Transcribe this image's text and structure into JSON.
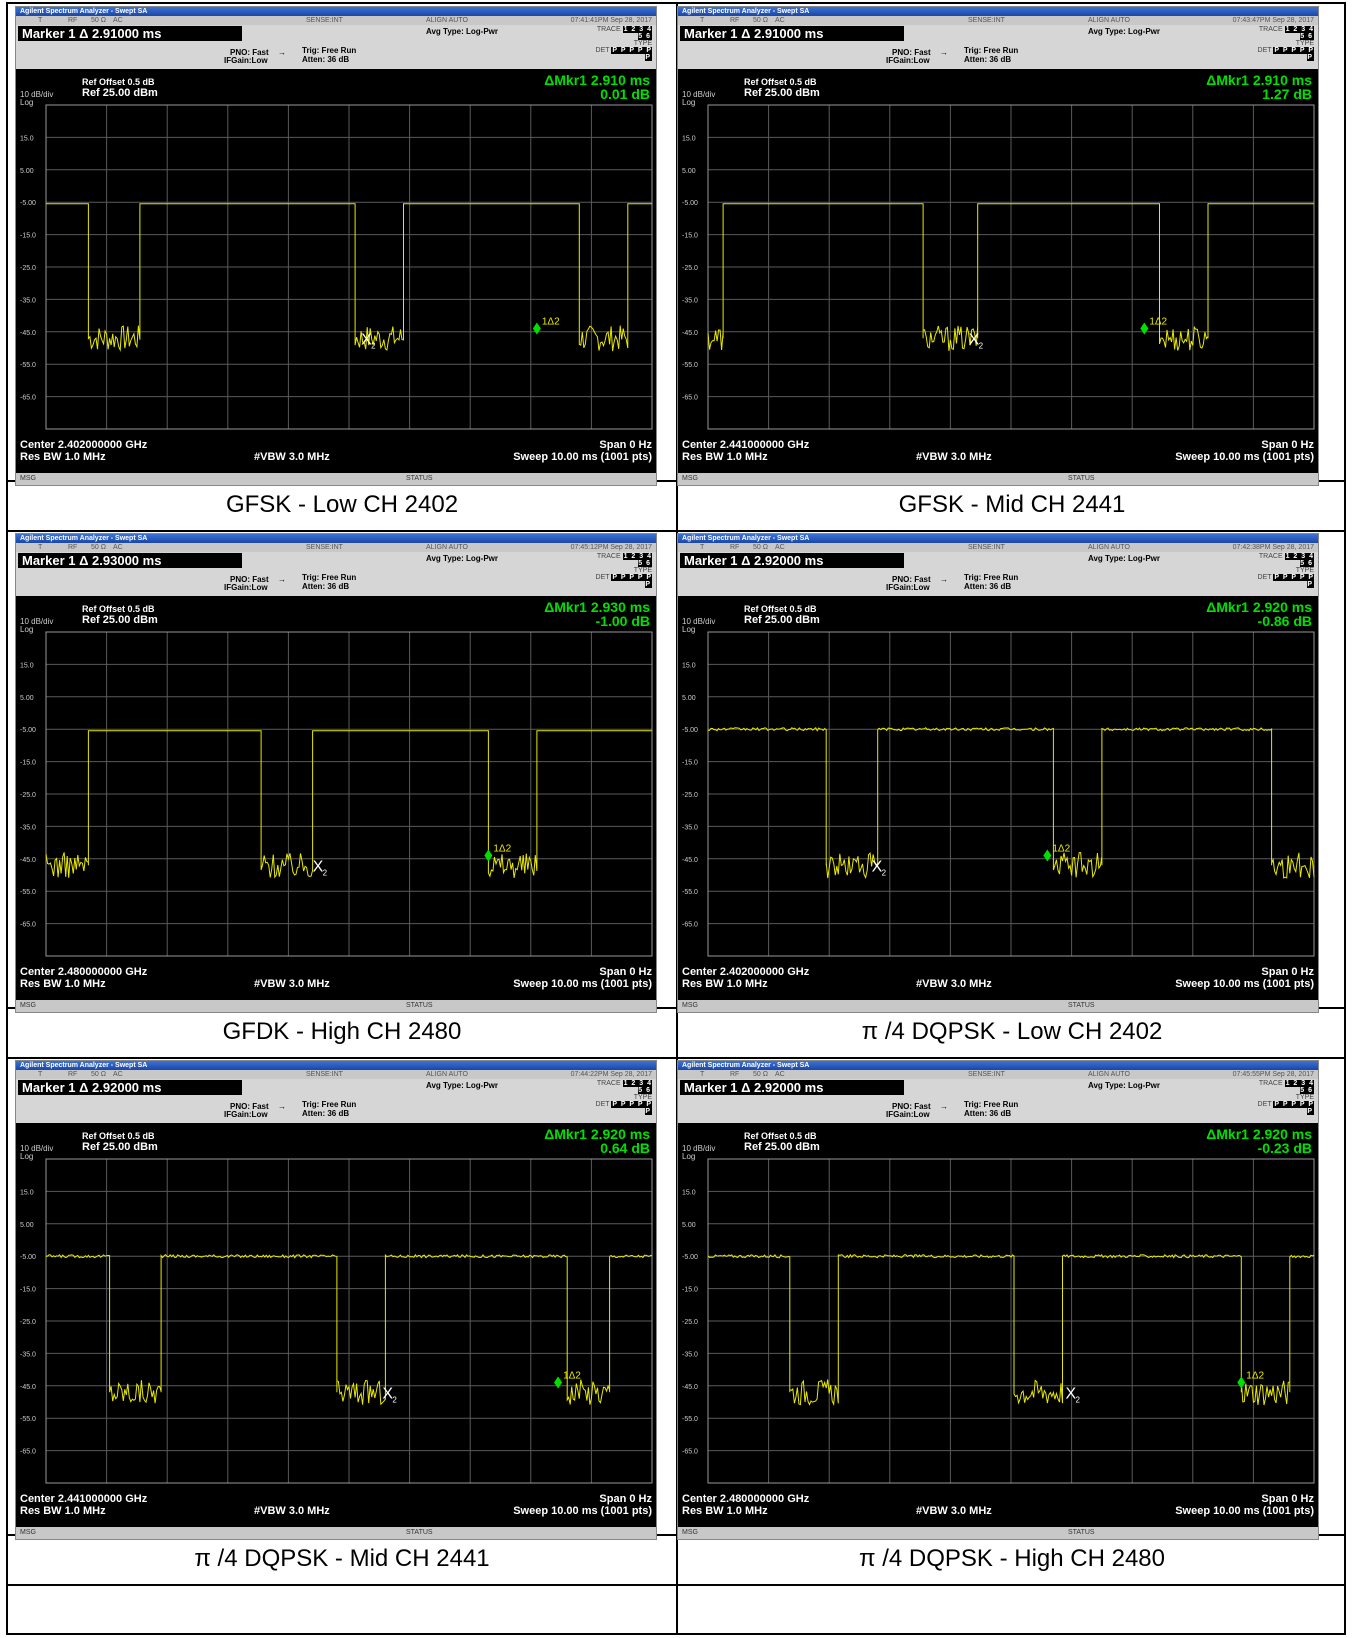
{
  "panels": [
    {
      "caption": "GFSK - Low CH 2402",
      "window_title": "Agilent Spectrum Analyzer - Swept SA",
      "timestamp": "07:41:41PM Sep 28, 2017",
      "marker_label": "Marker 1 Δ 2.91000 ms",
      "delta_mkr": "ΔMkr1 2.910 ms",
      "delta_db": "0.01 dB",
      "center": "Center 2.402000000 GHz",
      "chart_data": {
        "type": "line",
        "x_unit": "ms",
        "xlim": [
          0,
          10
        ],
        "ylim": [
          -75,
          25
        ],
        "segments": [
          [
            0,
            -5.5
          ],
          [
            0.7,
            -5.5
          ],
          [
            0.7,
            -47
          ],
          [
            1.55,
            -47
          ],
          [
            1.55,
            -5.5
          ],
          [
            5.1,
            -5.5
          ],
          [
            5.1,
            -47
          ],
          [
            5.9,
            -47
          ],
          [
            5.9,
            -5.5
          ],
          [
            8.8,
            -5.5
          ],
          [
            8.8,
            -47
          ],
          [
            9.6,
            -47
          ],
          [
            9.6,
            -5.5
          ],
          [
            10,
            -5.5
          ]
        ],
        "noisy_levels": "low",
        "marker_x2": 5.2,
        "marker_1delta2": 8.1
      }
    },
    {
      "caption": "GFSK - Mid CH 2441",
      "window_title": "Agilent Spectrum Analyzer - Swept SA",
      "timestamp": "07:43:47PM Sep 28, 2017",
      "marker_label": "Marker 1 Δ 2.91000 ms",
      "delta_mkr": "ΔMkr1 2.910 ms",
      "delta_db": "1.27 dB",
      "center": "Center 2.441000000 GHz",
      "chart_data": {
        "type": "line",
        "x_unit": "ms",
        "xlim": [
          0,
          10
        ],
        "ylim": [
          -75,
          25
        ],
        "segments": [
          [
            0,
            -47
          ],
          [
            0.25,
            -47
          ],
          [
            0.25,
            -5.5
          ],
          [
            3.55,
            -5.5
          ],
          [
            3.55,
            -47
          ],
          [
            4.45,
            -47
          ],
          [
            4.45,
            -5.5
          ],
          [
            7.45,
            -5.5
          ],
          [
            7.45,
            -47
          ],
          [
            8.25,
            -47
          ],
          [
            8.25,
            -5.5
          ],
          [
            10,
            -5.5
          ]
        ],
        "noisy_levels": "low",
        "marker_x2": 4.3,
        "marker_1delta2": 7.2
      }
    },
    {
      "caption": "GFDK - High CH 2480",
      "window_title": "Agilent Spectrum Analyzer - Swept SA",
      "timestamp": "07:45:12PM Sep 28, 2017",
      "marker_label": "Marker 1 Δ 2.93000 ms",
      "delta_mkr": "ΔMkr1 2.930 ms",
      "delta_db": "-1.00 dB",
      "center": "Center 2.480000000 GHz",
      "chart_data": {
        "type": "line",
        "x_unit": "ms",
        "xlim": [
          0,
          10
        ],
        "ylim": [
          -75,
          25
        ],
        "segments": [
          [
            0,
            -47
          ],
          [
            0.7,
            -47
          ],
          [
            0.7,
            -5.5
          ],
          [
            3.55,
            -5.5
          ],
          [
            3.55,
            -47
          ],
          [
            4.4,
            -47
          ],
          [
            4.4,
            -5.5
          ],
          [
            7.3,
            -5.5
          ],
          [
            7.3,
            -47
          ],
          [
            8.1,
            -47
          ],
          [
            8.1,
            -5.5
          ],
          [
            10,
            -5.5
          ]
        ],
        "noisy_levels": "low",
        "marker_x2": 4.4,
        "marker_1delta2": 7.3
      }
    },
    {
      "caption": "π /4 DQPSK - Low CH 2402",
      "window_title": "Agilent Spectrum Analyzer - Swept SA",
      "timestamp": "07:42:38PM Sep 28, 2017",
      "marker_label": "Marker 1 Δ 2.92000 ms",
      "delta_mkr": "ΔMkr1 2.920 ms",
      "delta_db": "-0.86 dB",
      "center": "Center 2.402000000 GHz",
      "chart_data": {
        "type": "line",
        "x_unit": "ms",
        "xlim": [
          0,
          10
        ],
        "ylim": [
          -75,
          25
        ],
        "segments": [
          [
            0,
            -5
          ],
          [
            1.95,
            -5
          ],
          [
            1.95,
            -47
          ],
          [
            2.8,
            -47
          ],
          [
            2.8,
            -5
          ],
          [
            5.7,
            -5
          ],
          [
            5.7,
            -47
          ],
          [
            6.5,
            -47
          ],
          [
            6.5,
            -5
          ],
          [
            9.3,
            -5
          ],
          [
            9.3,
            -47
          ],
          [
            10,
            -47
          ]
        ],
        "noisy_levels": "high",
        "marker_x2": 2.7,
        "marker_1delta2": 5.6
      }
    },
    {
      "caption": "π /4 DQPSK - Mid CH 2441",
      "window_title": "Agilent Spectrum Analyzer - Swept SA",
      "timestamp": "07:44:22PM Sep 28, 2017",
      "marker_label": "Marker 1 Δ 2.92000 ms",
      "delta_mkr": "ΔMkr1 2.920 ms",
      "delta_db": "0.64 dB",
      "center": "Center 2.441000000 GHz",
      "chart_data": {
        "type": "line",
        "x_unit": "ms",
        "xlim": [
          0,
          10
        ],
        "ylim": [
          -75,
          25
        ],
        "segments": [
          [
            0,
            -5
          ],
          [
            1.05,
            -5
          ],
          [
            1.05,
            -47
          ],
          [
            1.9,
            -47
          ],
          [
            1.9,
            -5
          ],
          [
            4.8,
            -5
          ],
          [
            4.8,
            -47
          ],
          [
            5.6,
            -47
          ],
          [
            5.6,
            -5
          ],
          [
            8.6,
            -5
          ],
          [
            8.6,
            -47
          ],
          [
            9.3,
            -47
          ],
          [
            9.3,
            -5
          ],
          [
            10,
            -5
          ]
        ],
        "noisy_levels": "high",
        "marker_x2": 5.55,
        "marker_1delta2": 8.45
      }
    },
    {
      "caption": "π /4 DQPSK - High CH 2480",
      "window_title": "Agilent Spectrum Analyzer - Swept SA",
      "timestamp": "07:45:55PM Sep 28, 2017",
      "marker_label": "Marker 1 Δ 2.92000 ms",
      "delta_mkr": "ΔMkr1 2.920 ms",
      "delta_db": "-0.23 dB",
      "center": "Center 2.480000000 GHz",
      "chart_data": {
        "type": "line",
        "x_unit": "ms",
        "xlim": [
          0,
          10
        ],
        "ylim": [
          -75,
          25
        ],
        "segments": [
          [
            0,
            -5
          ],
          [
            1.35,
            -5
          ],
          [
            1.35,
            -47
          ],
          [
            2.15,
            -47
          ],
          [
            2.15,
            -5
          ],
          [
            5.05,
            -5
          ],
          [
            5.05,
            -47
          ],
          [
            5.85,
            -47
          ],
          [
            5.85,
            -5
          ],
          [
            8.8,
            -5
          ],
          [
            8.8,
            -47
          ],
          [
            9.6,
            -47
          ],
          [
            9.6,
            -5
          ],
          [
            10,
            -5
          ]
        ],
        "noisy_levels": "high",
        "marker_x2": 5.9,
        "marker_1delta2": 8.8
      }
    }
  ],
  "common": {
    "status_items": [
      "T",
      "RF",
      "50 Ω",
      "AC",
      "SENSE:INT",
      "ALIGN AUTO"
    ],
    "avg_type": "Avg Type: Log-Pwr",
    "pno": "PNO: Fast",
    "ifgain": "IFGain:Low",
    "trig": "Trig: Free Run",
    "atten": "Atten: 36 dB",
    "trace_label": "TRACE",
    "type_label": "TYPE",
    "det_label": "DET",
    "trace_numbers": "1 2 3 4 5 6",
    "det_values": "P P P P P P",
    "ref_offset": "Ref Offset 0.5 dB",
    "ref_level": "Ref 25.00 dBm",
    "scale": "10 dB/div",
    "scale_type": "Log",
    "y_ticks": [
      "15.0",
      "5.00",
      "-5.00",
      "-15.0",
      "-25.0",
      "-35.0",
      "-45.0",
      "-55.0",
      "-65.0"
    ],
    "res_bw": "Res BW 1.0 MHz",
    "vbw": "#VBW 3.0 MHz",
    "span": "Span 0 Hz",
    "sweep": "Sweep  10.00 ms (1001 pts)",
    "msg": "MSG",
    "status": "STATUS",
    "marker_x_label": "X",
    "marker_x_sub": "2",
    "marker_delta_label": "1Δ2",
    "colors": {
      "trace": "#e8e800",
      "marker": "#00e000",
      "grid": "#5a5a5a",
      "background": "#000000"
    }
  }
}
